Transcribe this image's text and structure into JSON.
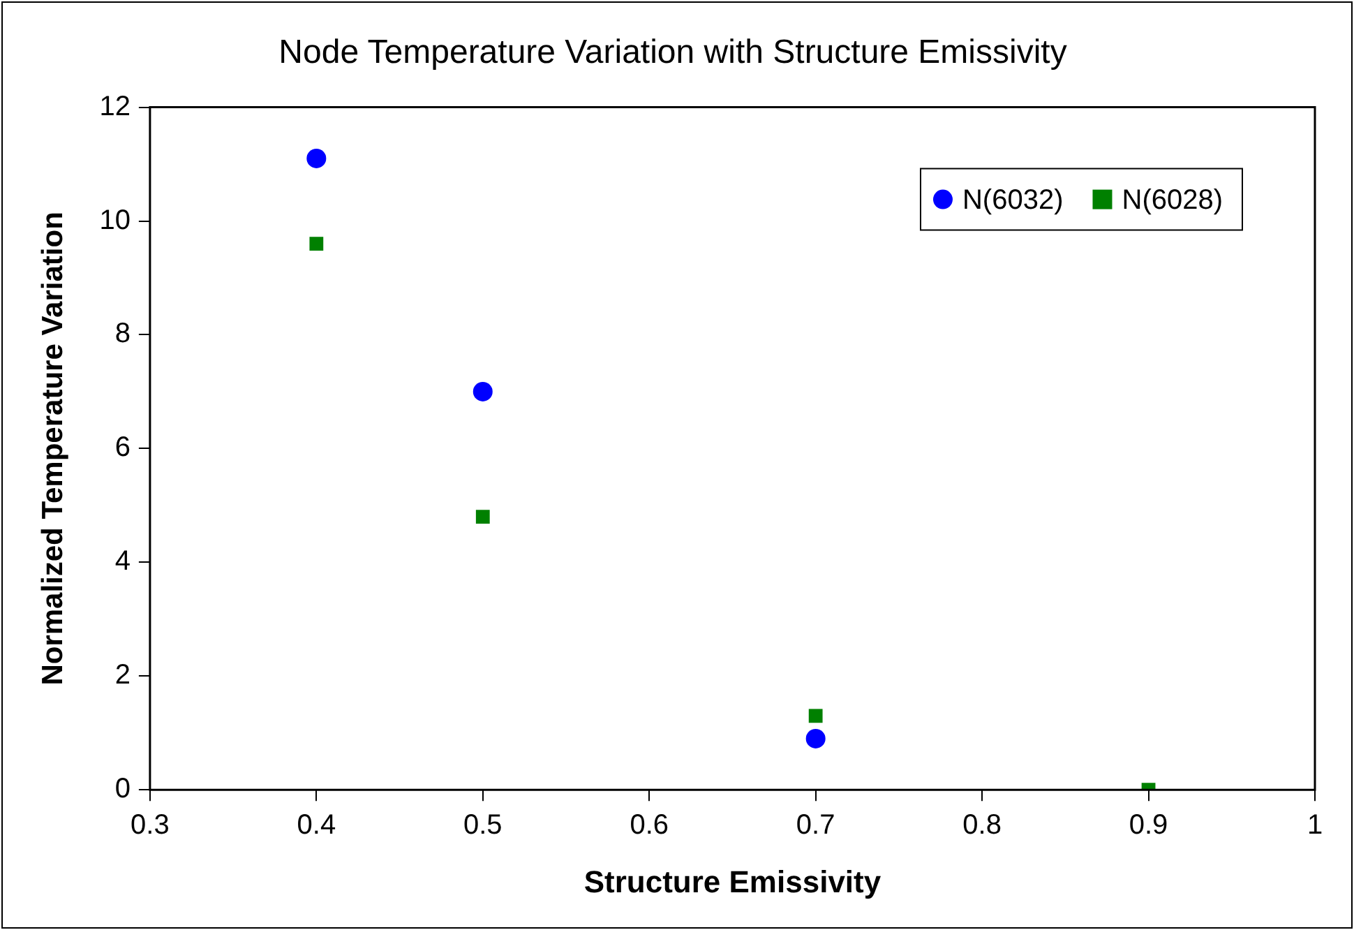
{
  "chart_data": {
    "type": "scatter",
    "title": "Node Temperature Variation with Structure Emissivity",
    "xlabel": "Structure Emissivity",
    "ylabel": "Normalized Temperature Variation",
    "xlim": [
      0.3,
      1
    ],
    "xticks": [
      0.3,
      0.4,
      0.5,
      0.6,
      0.7,
      0.8,
      0.9,
      1
    ],
    "ylim": [
      0,
      12
    ],
    "yticks": [
      0,
      2,
      4,
      6,
      8,
      10,
      12
    ],
    "grid": false,
    "legend": "top right",
    "series": [
      {
        "name": "N(6032)",
        "color": "#0000ff",
        "marker": "circle",
        "x": [
          0.4,
          0.5,
          0.7
        ],
        "values": [
          11.1,
          7.0,
          0.9
        ]
      },
      {
        "name": "N(6028)",
        "color": "#008000",
        "marker": "square",
        "x": [
          0.4,
          0.5,
          0.7,
          0.9
        ],
        "values": [
          9.6,
          4.8,
          1.3,
          0.0
        ]
      }
    ]
  }
}
